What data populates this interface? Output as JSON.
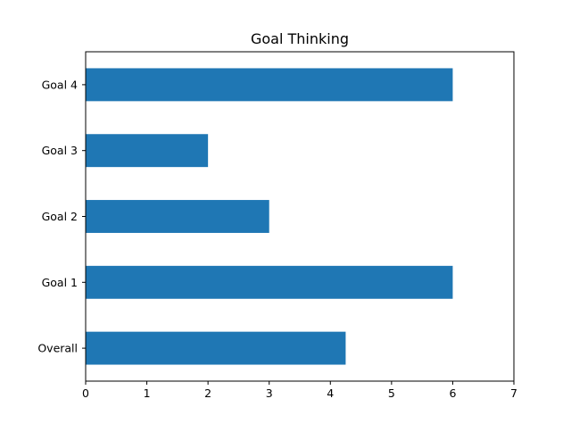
{
  "chart_data": {
    "type": "bar",
    "orientation": "horizontal",
    "title": "Goal Thinking",
    "xlabel": "",
    "ylabel": "",
    "categories": [
      "Overall",
      "Goal 1",
      "Goal 2",
      "Goal 3",
      "Goal 4"
    ],
    "values": [
      4.25,
      6,
      3,
      2,
      6
    ],
    "xlim": [
      0,
      7
    ],
    "xticks": [
      "0",
      "1",
      "2",
      "3",
      "4",
      "5",
      "6",
      "7"
    ],
    "grid": false,
    "legend": "none",
    "bar_color": "#1f77b4"
  }
}
